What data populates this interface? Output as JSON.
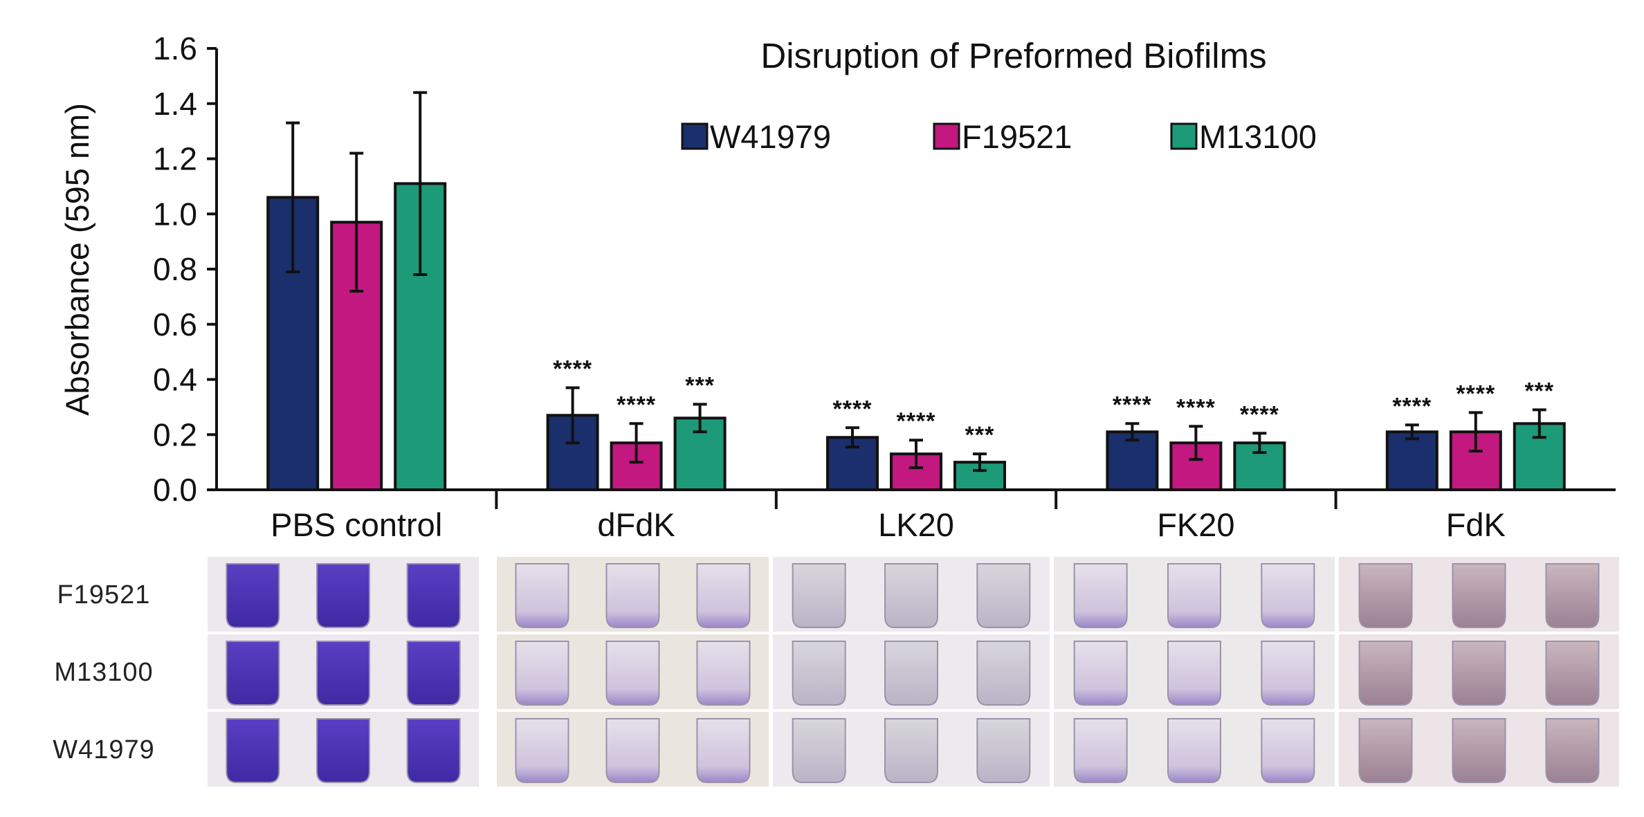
{
  "chart_data": {
    "type": "bar",
    "title": "Disruption of Preformed Biofilms",
    "xlabel": "",
    "ylabel": "Absorbance (595 nm)",
    "ylim": [
      0,
      1.6
    ],
    "yticks": [
      "0.0",
      "0.2",
      "0.4",
      "0.6",
      "0.8",
      "1.0",
      "1.2",
      "1.4",
      "1.6"
    ],
    "categories": [
      "PBS control",
      "dFdK",
      "LK20",
      "FK20",
      "FdK"
    ],
    "legend_position": "top-right",
    "grid": false,
    "series": [
      {
        "name": "W41979",
        "color": "#1a2f6b",
        "values": [
          1.06,
          0.27,
          0.19,
          0.21,
          0.21
        ],
        "errors": [
          0.27,
          0.1,
          0.035,
          0.03,
          0.025
        ],
        "significance": [
          "",
          "****",
          "****",
          "****",
          "****"
        ]
      },
      {
        "name": "F19521",
        "color": "#c2187f",
        "values": [
          0.97,
          0.17,
          0.13,
          0.17,
          0.21
        ],
        "errors": [
          0.25,
          0.07,
          0.05,
          0.06,
          0.07
        ],
        "significance": [
          "",
          "****",
          "****",
          "****",
          "****"
        ]
      },
      {
        "name": "M13100",
        "color": "#1d9a78",
        "values": [
          1.11,
          0.26,
          0.1,
          0.17,
          0.24
        ],
        "errors": [
          0.33,
          0.05,
          0.03,
          0.035,
          0.05
        ],
        "significance": [
          "",
          "***",
          "***",
          "****",
          "***"
        ]
      }
    ]
  },
  "photo_panel": {
    "row_labels": [
      "F19521",
      "M13100",
      "W41979"
    ]
  }
}
